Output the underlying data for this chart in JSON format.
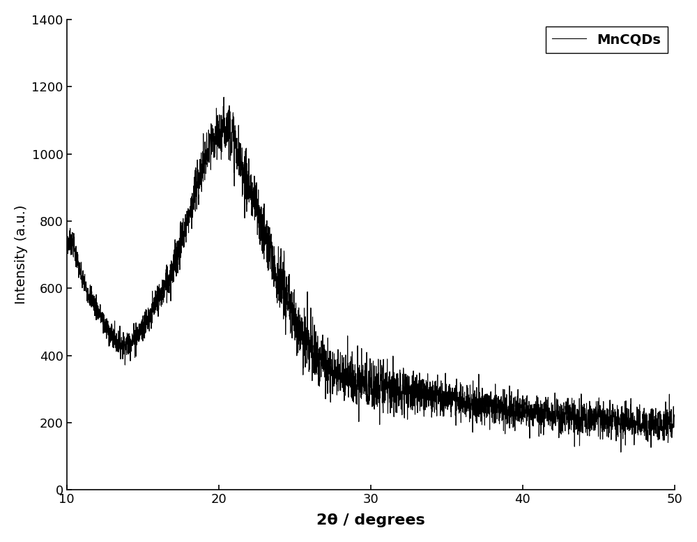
{
  "title": "",
  "xlabel": "2θ / degrees",
  "ylabel": "Intensity (a.u.)",
  "xlim": [
    10,
    50
  ],
  "ylim": [
    0,
    1400
  ],
  "xticks": [
    10,
    20,
    30,
    40,
    50
  ],
  "yticks": [
    0,
    200,
    400,
    600,
    800,
    1000,
    1200,
    1400
  ],
  "legend_label": "MnCQDs",
  "line_color": "#000000",
  "line_width": 0.8,
  "background_color": "#ffffff",
  "seed": 7,
  "n_points": 4000
}
